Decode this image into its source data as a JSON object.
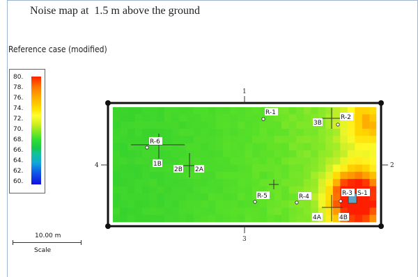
{
  "title": "Noise map at  1.5 m above the ground",
  "subtitle": "Reference case (modified)",
  "legend": {
    "labels": [
      "80.",
      "78.",
      "76.",
      "74.",
      "72.",
      "70.",
      "68.",
      "66.",
      "64.",
      "62.",
      "60."
    ]
  },
  "scale": {
    "distance": "10.00 m",
    "label": "Scale"
  },
  "sides": {
    "top": "1",
    "right": "2",
    "bottom": "3",
    "left": "4"
  },
  "receivers": [
    "R-1",
    "R-2",
    "R-3",
    "R-4",
    "R-5",
    "R-6"
  ],
  "sources": [
    "S-1"
  ],
  "markers": [
    "1B",
    "2A",
    "2B",
    "3B",
    "4A",
    "4B"
  ],
  "colors": {
    "frame": "#111111",
    "border": "#9db4d0",
    "low": "#33e030",
    "mid": "#ffff30",
    "high": "#ff2200"
  }
}
